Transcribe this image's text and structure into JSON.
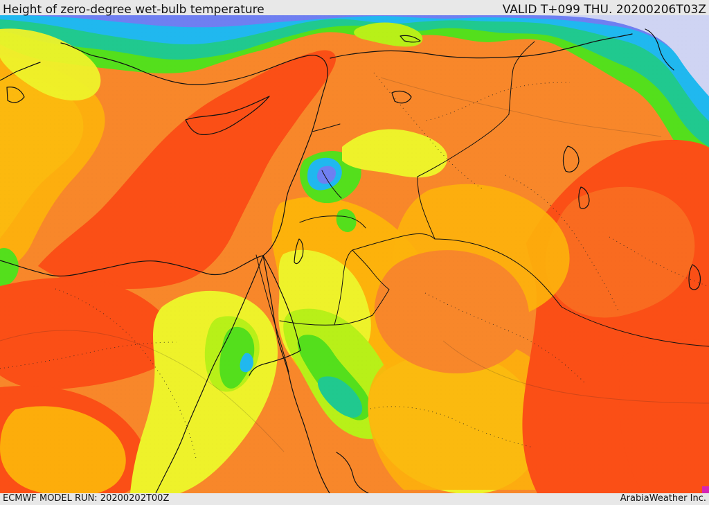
{
  "header": {
    "title": "Height of zero-degree wet-bulb temperature",
    "valid": "VALID T+099 THU. 20200206T03Z"
  },
  "footer": {
    "model_run": "ECMWF MODEL RUN: 20200202T00Z",
    "credit": "ArabiaWeather Inc."
  },
  "colors": {
    "background": "#e8e8e8",
    "sea_orange": "#f8872a",
    "hot_red": "#fb4f16",
    "amber": "#fdb20b",
    "yellow": "#eef22a",
    "lime": "#b8f018",
    "green": "#54df1c",
    "teal": "#20c98f",
    "cyan": "#20b8ef",
    "blue": "#6f7ff1",
    "lavender": "#cfd4f3",
    "magenta": "#d623b3",
    "border": "#1a1a1a"
  }
}
